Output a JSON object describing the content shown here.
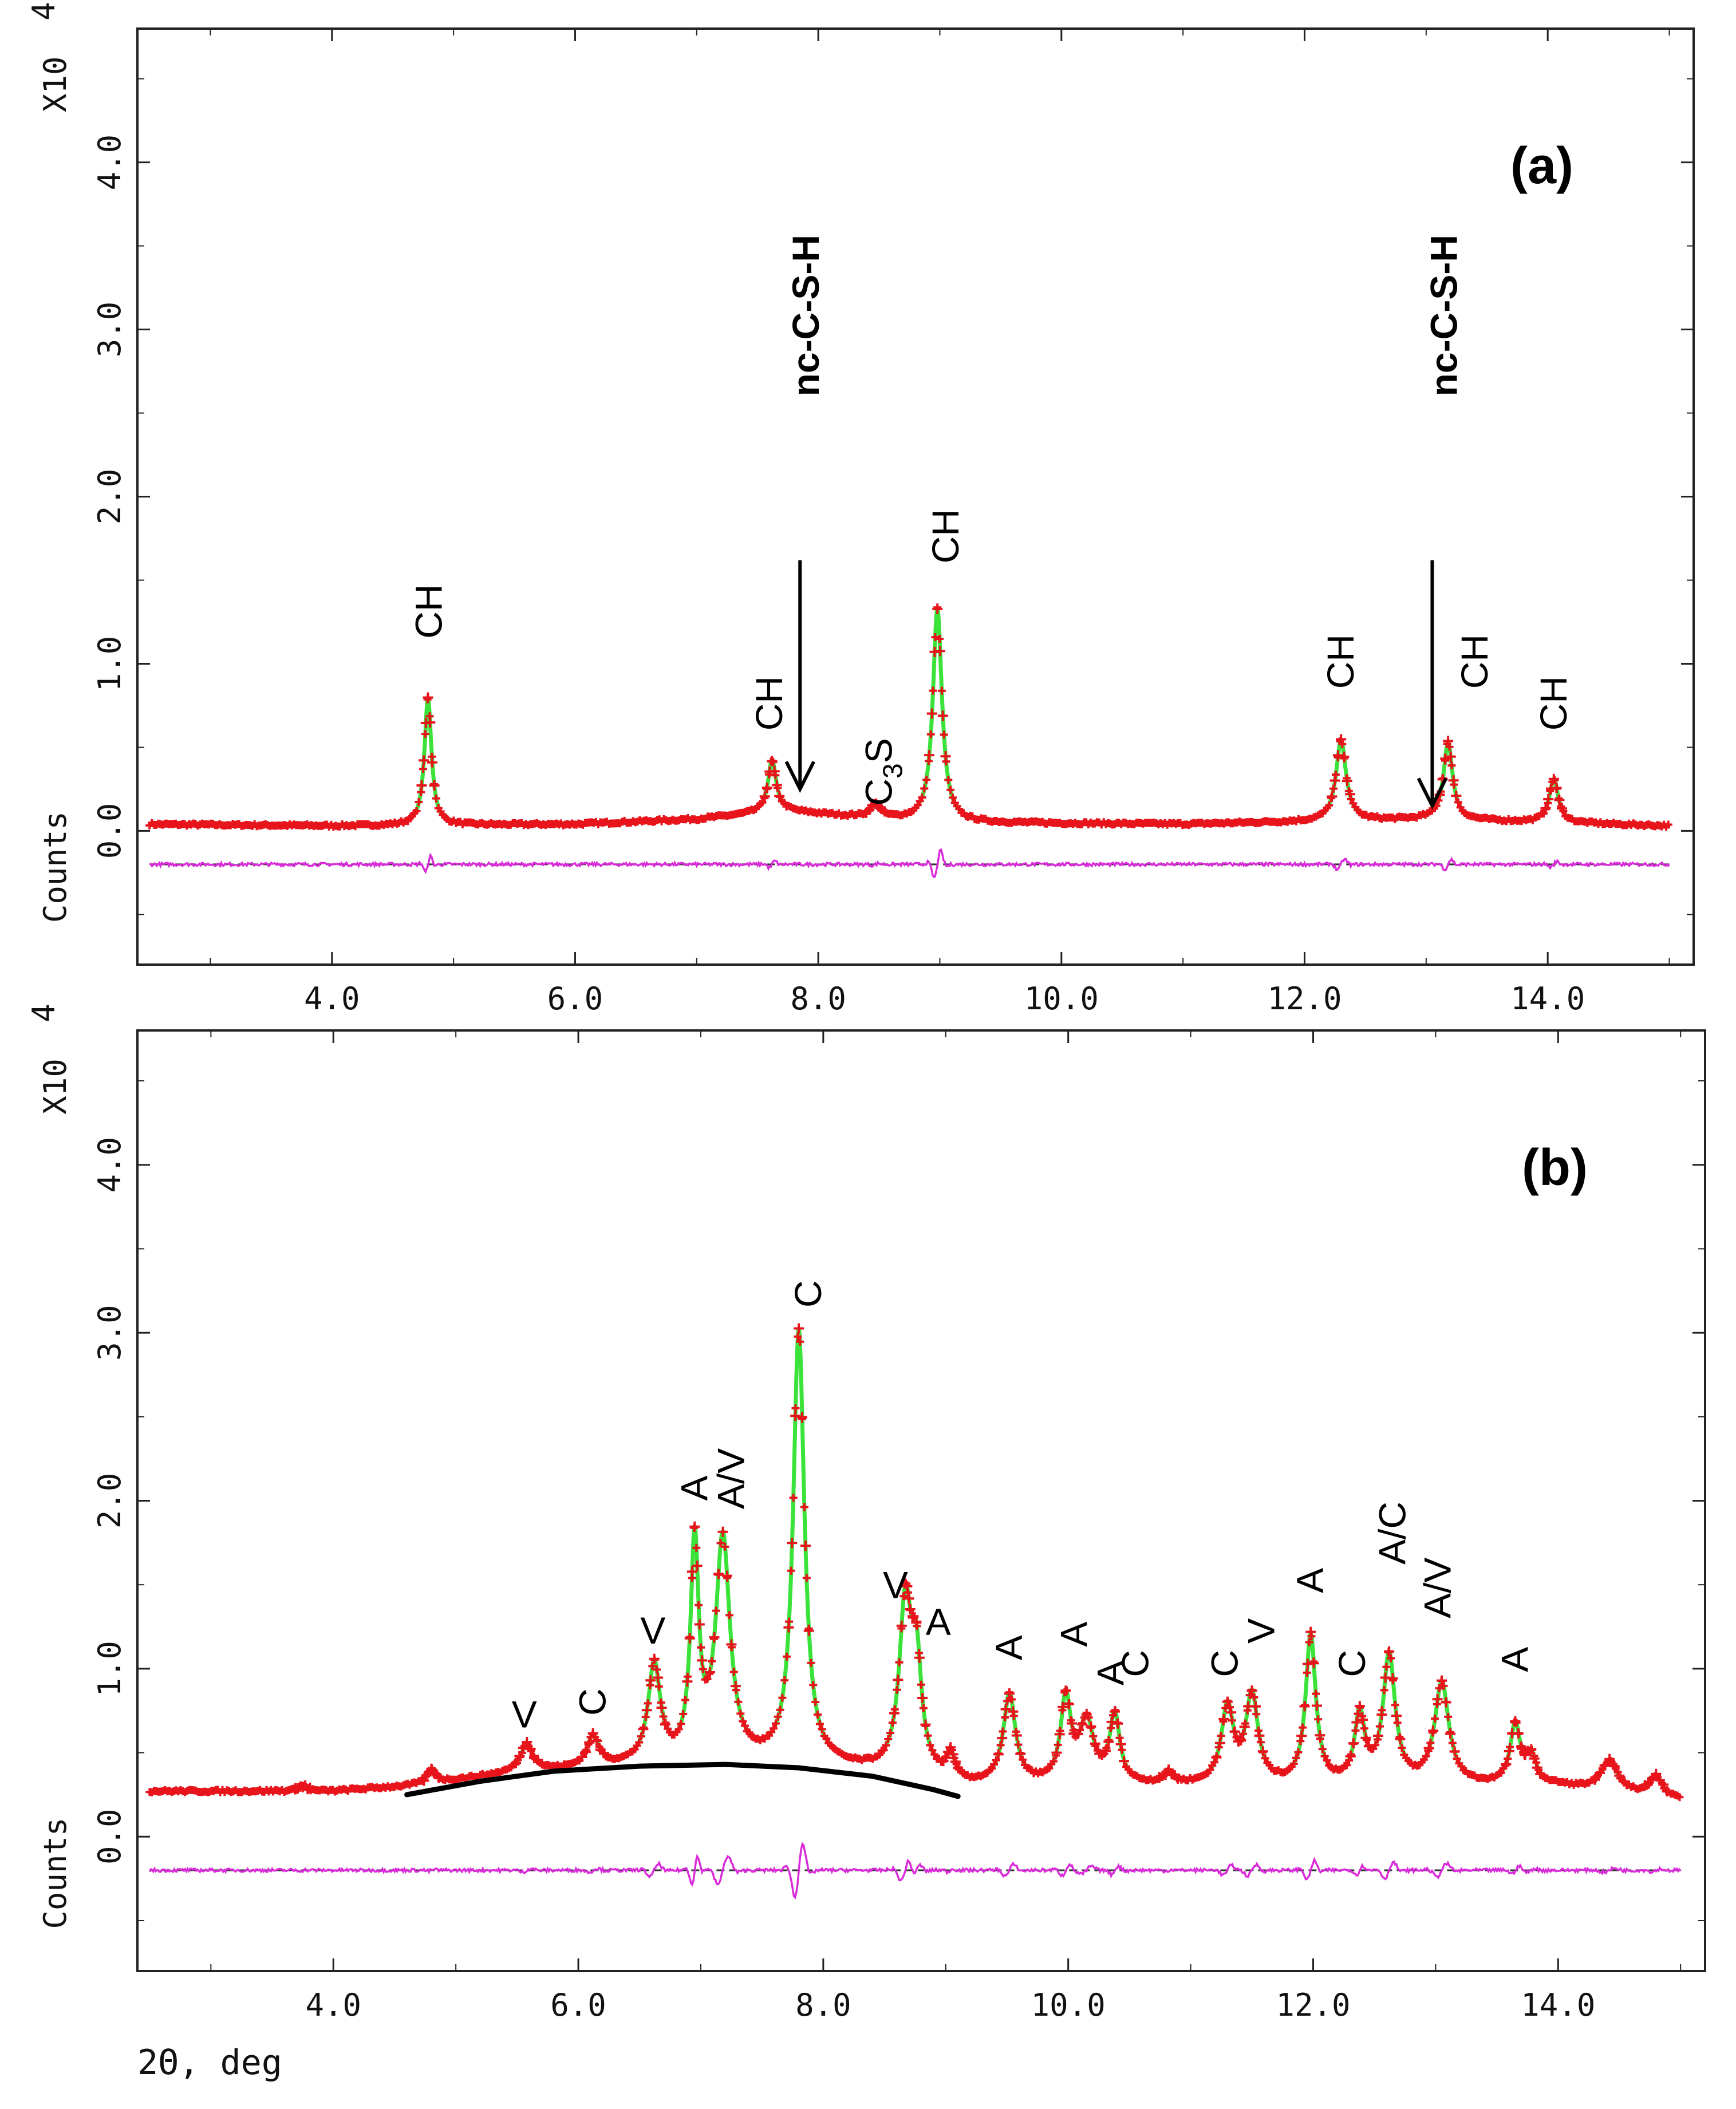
{
  "chart_data": [
    {
      "type": "line",
      "panel_label": "(a)",
      "ylabel_top": "X10",
      "ylabel_exp": "4",
      "ylabel_bottom": "Counts",
      "xlabel": "",
      "xlim": [
        2.4,
        15.2
      ],
      "ylim": [
        -0.8,
        4.8
      ],
      "xticks": [
        4.0,
        6.0,
        8.0,
        10.0,
        12.0,
        14.0
      ],
      "xtick_labels": [
        "4.0",
        "6.0",
        "8.0",
        "10.0",
        "12.0",
        "14.0"
      ],
      "yticks": [
        0.0,
        1.0,
        2.0,
        3.0,
        4.0
      ],
      "ytick_labels": [
        "0.0",
        "1.0",
        "2.0",
        "3.0",
        "4.0"
      ],
      "difference_offset": -0.2,
      "background": [
        [
          2.5,
          0.04
        ],
        [
          4.0,
          0.03
        ],
        [
          6.0,
          0.04
        ],
        [
          7.0,
          0.07
        ],
        [
          7.7,
          0.12
        ],
        [
          8.2,
          0.09
        ],
        [
          9.0,
          0.05
        ],
        [
          11.0,
          0.04
        ],
        [
          13.0,
          0.07
        ],
        [
          15.0,
          0.03
        ]
      ],
      "peaks": [
        {
          "x": 4.79,
          "y": 0.76,
          "w": 0.035
        },
        {
          "x": 7.62,
          "y": 0.31,
          "w": 0.04
        },
        {
          "x": 8.47,
          "y": 0.08,
          "w": 0.05
        },
        {
          "x": 8.98,
          "y": 1.28,
          "w": 0.045
        },
        {
          "x": 12.3,
          "y": 0.48,
          "w": 0.05
        },
        {
          "x": 13.18,
          "y": 0.46,
          "w": 0.045
        },
        {
          "x": 14.05,
          "y": 0.26,
          "w": 0.045
        }
      ],
      "series": [
        {
          "name": "observed",
          "color": "#e8141c",
          "marker": "+"
        },
        {
          "name": "calculated",
          "color": "#3ae23a"
        },
        {
          "name": "difference",
          "color": "#d92bd9"
        }
      ],
      "annotations": [
        {
          "text": "CH",
          "x": 4.8,
          "y": 1.15,
          "rotate": -90
        },
        {
          "text": "CH",
          "x": 7.6,
          "y": 0.6,
          "rotate": -90
        },
        {
          "text": "CH",
          "x": 9.05,
          "y": 1.6,
          "rotate": -90
        },
        {
          "text": "CH",
          "x": 12.3,
          "y": 0.85,
          "rotate": -90
        },
        {
          "text": "CH",
          "x": 13.4,
          "y": 0.85,
          "rotate": -90
        },
        {
          "text": "CH",
          "x": 14.05,
          "y": 0.6,
          "rotate": -90
        },
        {
          "text": "C",
          "sub": "3",
          "tail": "S",
          "x": 8.5,
          "y": 0.15,
          "rotate": -90
        },
        {
          "text": "nc-C-S-H",
          "x": 7.9,
          "y": 2.6,
          "rotate": -90,
          "bold": true
        },
        {
          "text": "nc-C-S-H",
          "x": 13.15,
          "y": 2.6,
          "rotate": -90,
          "bold": true
        }
      ],
      "arrows": [
        {
          "x": 7.85,
          "y_from": 1.62,
          "y_to": 0.25
        },
        {
          "x": 13.05,
          "y_from": 1.62,
          "y_to": 0.15
        }
      ]
    },
    {
      "type": "line",
      "panel_label": "(b)",
      "ylabel_top": "X10",
      "ylabel_exp": "4",
      "ylabel_bottom": "Counts",
      "xlabel": "2Θ, deg",
      "xlim": [
        2.4,
        15.2
      ],
      "ylim": [
        -0.8,
        4.8
      ],
      "xticks": [
        4.0,
        6.0,
        8.0,
        10.0,
        12.0,
        14.0
      ],
      "xtick_labels": [
        "4.0",
        "6.0",
        "8.0",
        "10.0",
        "12.0",
        "14.0"
      ],
      "yticks": [
        0.0,
        1.0,
        2.0,
        3.0,
        4.0
      ],
      "ytick_labels": [
        "0.0",
        "1.0",
        "2.0",
        "3.0",
        "4.0"
      ],
      "difference_offset": -0.2,
      "background": [
        [
          2.5,
          0.27
        ],
        [
          4.0,
          0.27
        ],
        [
          4.6,
          0.3
        ],
        [
          5.5,
          0.38
        ],
        [
          6.5,
          0.42
        ],
        [
          7.2,
          0.43
        ],
        [
          8.0,
          0.41
        ],
        [
          8.8,
          0.35
        ],
        [
          9.2,
          0.3
        ],
        [
          10.0,
          0.3
        ],
        [
          12.0,
          0.3
        ],
        [
          14.0,
          0.3
        ],
        [
          15.0,
          0.22
        ]
      ],
      "peaks": [
        {
          "x": 3.75,
          "y": 0.03,
          "w": 0.04
        },
        {
          "x": 4.8,
          "y": 0.08,
          "w": 0.04
        },
        {
          "x": 5.58,
          "y": 0.16,
          "w": 0.06
        },
        {
          "x": 6.12,
          "y": 0.18,
          "w": 0.06
        },
        {
          "x": 6.62,
          "y": 0.58,
          "w": 0.06
        },
        {
          "x": 6.95,
          "y": 1.28,
          "w": 0.04
        },
        {
          "x": 7.18,
          "y": 1.32,
          "w": 0.07
        },
        {
          "x": 7.8,
          "y": 2.58,
          "w": 0.055
        },
        {
          "x": 8.67,
          "y": 0.98,
          "w": 0.06
        },
        {
          "x": 8.76,
          "y": 0.6,
          "w": 0.05
        },
        {
          "x": 9.04,
          "y": 0.14,
          "w": 0.04
        },
        {
          "x": 9.52,
          "y": 0.53,
          "w": 0.06
        },
        {
          "x": 9.98,
          "y": 0.5,
          "w": 0.05
        },
        {
          "x": 10.15,
          "y": 0.36,
          "w": 0.07
        },
        {
          "x": 10.38,
          "y": 0.4,
          "w": 0.05
        },
        {
          "x": 10.82,
          "y": 0.06,
          "w": 0.05
        },
        {
          "x": 11.3,
          "y": 0.45,
          "w": 0.06
        },
        {
          "x": 11.5,
          "y": 0.52,
          "w": 0.06
        },
        {
          "x": 11.98,
          "y": 0.88,
          "w": 0.05
        },
        {
          "x": 12.38,
          "y": 0.4,
          "w": 0.05
        },
        {
          "x": 12.62,
          "y": 0.76,
          "w": 0.06
        },
        {
          "x": 13.05,
          "y": 0.6,
          "w": 0.07
        },
        {
          "x": 13.65,
          "y": 0.35,
          "w": 0.05
        },
        {
          "x": 13.78,
          "y": 0.16,
          "w": 0.05
        },
        {
          "x": 14.42,
          "y": 0.18,
          "w": 0.08
        },
        {
          "x": 14.8,
          "y": 0.12,
          "w": 0.06
        }
      ],
      "series": [
        {
          "name": "observed",
          "color": "#e8141c",
          "marker": "+"
        },
        {
          "name": "calculated",
          "color": "#3ae23a"
        },
        {
          "name": "difference",
          "color": "#d92bd9"
        },
        {
          "name": "amorphous hump",
          "color": "#000000"
        }
      ],
      "hump": [
        [
          4.6,
          0.25
        ],
        [
          5.2,
          0.33
        ],
        [
          5.8,
          0.39
        ],
        [
          6.5,
          0.42
        ],
        [
          7.2,
          0.43
        ],
        [
          7.8,
          0.41
        ],
        [
          8.4,
          0.36
        ],
        [
          8.9,
          0.28
        ],
        [
          9.1,
          0.24
        ]
      ],
      "annotations": [
        {
          "text": "V",
          "x": 5.55,
          "y": 0.65,
          "rotate": 0
        },
        {
          "text": "C",
          "x": 6.12,
          "y": 0.72,
          "rotate": -90
        },
        {
          "text": "V",
          "x": 6.6,
          "y": 1.15,
          "rotate": 0
        },
        {
          "text": "A",
          "x": 6.95,
          "y": 2.0,
          "rotate": -90
        },
        {
          "text": "A/V",
          "x": 7.25,
          "y": 1.95,
          "rotate": -90
        },
        {
          "text": "C",
          "x": 7.88,
          "y": 3.15,
          "rotate": -90
        },
        {
          "text": "V",
          "x": 8.58,
          "y": 1.42,
          "rotate": 0
        },
        {
          "text": "A",
          "x": 8.93,
          "y": 1.2,
          "rotate": 0
        },
        {
          "text": "A",
          "x": 9.52,
          "y": 1.05,
          "rotate": -90
        },
        {
          "text": "A",
          "x": 10.05,
          "y": 1.13,
          "rotate": -90
        },
        {
          "text": "A",
          "x": 10.35,
          "y": 0.9,
          "rotate": -90
        },
        {
          "text": "C",
          "x": 10.55,
          "y": 0.95,
          "rotate": -90
        },
        {
          "text": "C",
          "x": 11.28,
          "y": 0.95,
          "rotate": -90
        },
        {
          "text": "V",
          "x": 11.58,
          "y": 1.15,
          "rotate": -90
        },
        {
          "text": "A",
          "x": 11.98,
          "y": 1.45,
          "rotate": -90
        },
        {
          "text": "C",
          "x": 12.32,
          "y": 0.95,
          "rotate": -90
        },
        {
          "text": "A/C",
          "x": 12.65,
          "y": 1.62,
          "rotate": -90
        },
        {
          "text": "A/V",
          "x": 13.02,
          "y": 1.3,
          "rotate": -90
        },
        {
          "text": "A",
          "x": 13.65,
          "y": 0.98,
          "rotate": -90
        }
      ]
    }
  ]
}
